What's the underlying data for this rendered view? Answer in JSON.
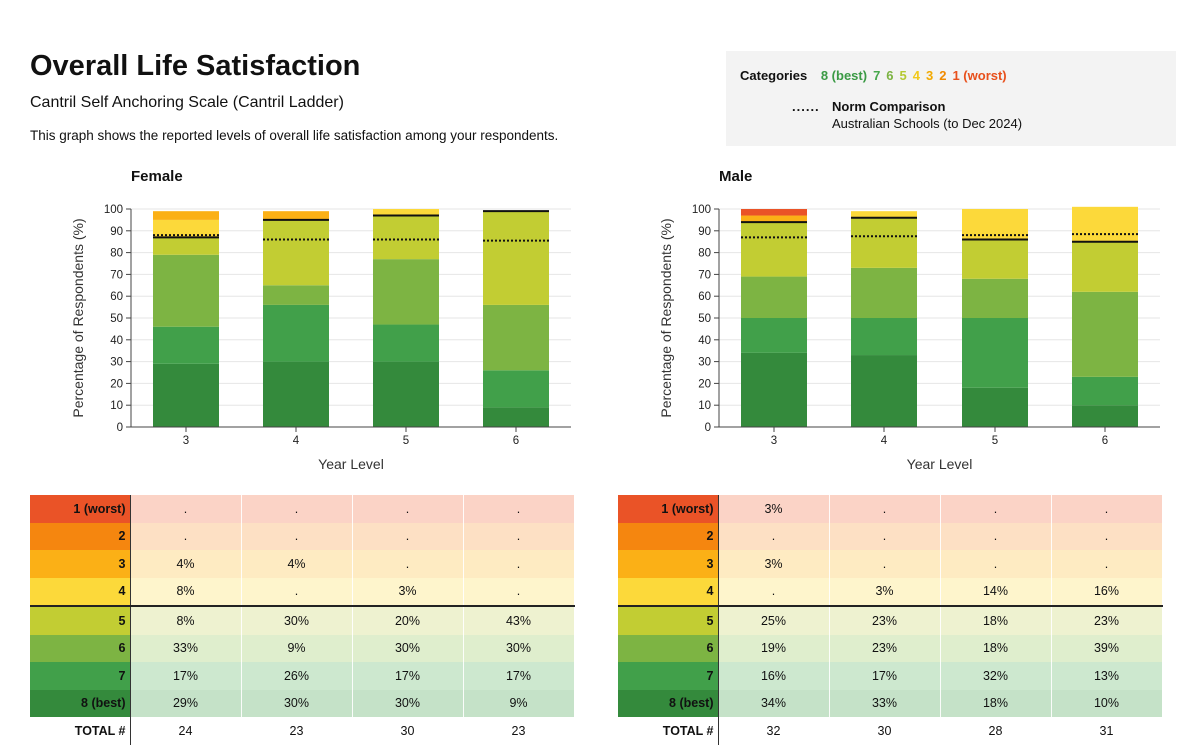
{
  "header": {
    "title": "Overall Life Satisfaction",
    "subtitle": "Cantril Self Anchoring Scale (Cantril Ladder)",
    "description": "This graph shows the reported levels of overall life satisfaction among your respondents."
  },
  "legend": {
    "label": "Categories",
    "categories": [
      {
        "text": "8 (best)",
        "color": "#3a9a44"
      },
      {
        "text": "7",
        "color": "#47a84d"
      },
      {
        "text": "6",
        "color": "#7cb342"
      },
      {
        "text": "5",
        "color": "#b5c933"
      },
      {
        "text": "4",
        "color": "#f2c91c"
      },
      {
        "text": "3",
        "color": "#f2a900"
      },
      {
        "text": "2",
        "color": "#f08a00"
      },
      {
        "text": "1 (worst)",
        "color": "#e8501c"
      }
    ],
    "norm_symbol": "......",
    "norm_title": "Norm Comparison",
    "norm_subtitle": "Australian Schools (to Dec 2024)"
  },
  "colors": {
    "1": "#ea5327",
    "2": "#f5860f",
    "3": "#fbb016",
    "4": "#fcd93a",
    "5": "#c2cd33",
    "6": "#7db443",
    "7": "#41a04a",
    "8": "#348a3c"
  },
  "table_row_labels": [
    "1 (worst)",
    "2",
    "3",
    "4",
    "5",
    "6",
    "7",
    "8 (best)"
  ],
  "table_total_label": "TOTAL #",
  "chart_data": [
    {
      "type": "bar",
      "stacked": true,
      "title": "Female",
      "xlabel": "Year Level",
      "ylabel": "Percentage of Respondents (%)",
      "ylim": [
        0,
        100
      ],
      "yticks": [
        "0",
        "10",
        "20",
        "30",
        "40",
        "50",
        "60",
        "70",
        "80",
        "90",
        "100"
      ],
      "categories": [
        "3",
        "4",
        "5",
        "6"
      ],
      "series": [
        {
          "name": "8 (best)",
          "values": [
            29,
            30,
            30,
            9
          ]
        },
        {
          "name": "7",
          "values": [
            17,
            26,
            17,
            17
          ]
        },
        {
          "name": "6",
          "values": [
            33,
            9,
            30,
            30
          ]
        },
        {
          "name": "5",
          "values": [
            8,
            30,
            20,
            43
          ]
        },
        {
          "name": "4",
          "values": [
            8,
            0,
            3,
            0
          ]
        },
        {
          "name": "3",
          "values": [
            4,
            4,
            0,
            0
          ]
        },
        {
          "name": "2",
          "values": [
            0,
            0,
            0,
            0
          ]
        },
        {
          "name": "1 (worst)",
          "values": [
            0,
            0,
            0,
            0
          ]
        }
      ],
      "norm_line": [
        88,
        86,
        86,
        85.5
      ],
      "table": {
        "rows": [
          [
            ".",
            ".",
            ".",
            "."
          ],
          [
            ".",
            ".",
            ".",
            "."
          ],
          [
            "4%",
            "4%",
            ".",
            "."
          ],
          [
            "8%",
            ".",
            "3%",
            "."
          ],
          [
            "8%",
            "30%",
            "20%",
            "43%"
          ],
          [
            "33%",
            "9%",
            "30%",
            "30%"
          ],
          [
            "17%",
            "26%",
            "17%",
            "17%"
          ],
          [
            "29%",
            "30%",
            "30%",
            "9%"
          ]
        ],
        "totals": [
          "24",
          "23",
          "30",
          "23"
        ]
      }
    },
    {
      "type": "bar",
      "stacked": true,
      "title": "Male",
      "xlabel": "Year Level",
      "ylabel": "Percentage of Respondents (%)",
      "ylim": [
        0,
        100
      ],
      "yticks": [
        "0",
        "10",
        "20",
        "30",
        "40",
        "50",
        "60",
        "70",
        "80",
        "90",
        "100"
      ],
      "categories": [
        "3",
        "4",
        "5",
        "6"
      ],
      "series": [
        {
          "name": "8 (best)",
          "values": [
            34,
            33,
            18,
            10
          ]
        },
        {
          "name": "7",
          "values": [
            16,
            17,
            32,
            13
          ]
        },
        {
          "name": "6",
          "values": [
            19,
            23,
            18,
            39
          ]
        },
        {
          "name": "5",
          "values": [
            25,
            23,
            18,
            23
          ]
        },
        {
          "name": "4",
          "values": [
            0,
            3,
            14,
            16
          ]
        },
        {
          "name": "3",
          "values": [
            3,
            0,
            0,
            0
          ]
        },
        {
          "name": "2",
          "values": [
            0,
            0,
            0,
            0
          ]
        },
        {
          "name": "1 (worst)",
          "values": [
            3,
            0,
            0,
            0
          ]
        }
      ],
      "norm_line": [
        87,
        87.5,
        88,
        88.5
      ],
      "table": {
        "rows": [
          [
            "3%",
            ".",
            ".",
            "."
          ],
          [
            ".",
            ".",
            ".",
            "."
          ],
          [
            "3%",
            ".",
            ".",
            "."
          ],
          [
            ".",
            "3%",
            "14%",
            "16%"
          ],
          [
            "25%",
            "23%",
            "18%",
            "23%"
          ],
          [
            "19%",
            "23%",
            "18%",
            "39%"
          ],
          [
            "16%",
            "17%",
            "32%",
            "13%"
          ],
          [
            "34%",
            "33%",
            "18%",
            "10%"
          ]
        ],
        "totals": [
          "32",
          "30",
          "28",
          "31"
        ]
      }
    }
  ]
}
